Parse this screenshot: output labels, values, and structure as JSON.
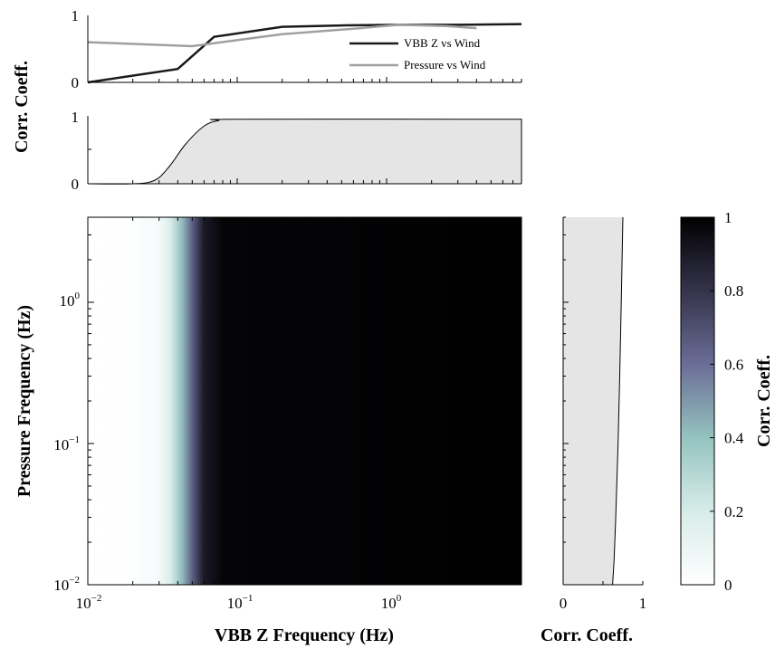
{
  "chart_data": [
    {
      "id": "top-coeff",
      "type": "line",
      "xscale": "log",
      "xlim": [
        0.01,
        8
      ],
      "ylim": [
        0,
        1
      ],
      "ylabel": "Corr. Coeff.",
      "yticks": [
        "0",
        "1"
      ],
      "legend_position": "top-right",
      "series": [
        {
          "name": "VBB Z vs Wind",
          "color": "#1a1a1a",
          "x": [
            0.01,
            0.04,
            0.07,
            0.2,
            0.5,
            1.2,
            3,
            8
          ],
          "y": [
            0.0,
            0.2,
            0.68,
            0.83,
            0.85,
            0.86,
            0.86,
            0.87
          ]
        },
        {
          "name": "Pressure vs Wind",
          "color": "#a0a0a0",
          "x": [
            0.01,
            0.05,
            0.2,
            0.6,
            1.2,
            2.5,
            4
          ],
          "y": [
            0.6,
            0.54,
            0.72,
            0.8,
            0.86,
            0.84,
            0.81
          ]
        }
      ]
    },
    {
      "id": "mid-coeff",
      "type": "area",
      "xscale": "log",
      "xlim": [
        0.01,
        8
      ],
      "ylim": [
        0,
        1
      ],
      "yticks": [
        "0",
        "1"
      ],
      "fill_color": "#e5e5e5",
      "line_color": "#000000",
      "x": [
        0.01,
        0.02,
        0.028,
        0.035,
        0.045,
        0.06,
        0.075,
        0.1,
        8
      ],
      "y": [
        0.0,
        0.0,
        0.05,
        0.25,
        0.58,
        0.85,
        0.93,
        0.95,
        0.95
      ]
    },
    {
      "id": "heatmap",
      "type": "heatmap",
      "xscale": "log",
      "yscale": "log",
      "xlim": [
        0.01,
        8
      ],
      "ylim": [
        0.01,
        4
      ],
      "xlabel": "VBB Z Frequency (Hz)",
      "ylabel": "Pressure Frequency (Hz)",
      "xticks": [
        {
          "base": "10",
          "exp": "−2"
        },
        {
          "base": "10",
          "exp": "−1"
        },
        {
          "base": "10",
          "exp": "0"
        }
      ],
      "yticks": [
        {
          "base": "10",
          "exp": "−2"
        },
        {
          "base": "10",
          "exp": "−1"
        },
        {
          "base": "10",
          "exp": "0"
        }
      ],
      "x_profile": {
        "x": [
          0.01,
          0.02,
          0.03,
          0.036,
          0.043,
          0.05,
          0.06,
          0.08,
          8
        ],
        "z": [
          0.0,
          0.01,
          0.05,
          0.2,
          0.42,
          0.65,
          0.9,
          0.98,
          1.0
        ]
      },
      "colormap": [
        [
          0.0,
          "#ffffff"
        ],
        [
          0.2,
          "#d7ece9"
        ],
        [
          0.4,
          "#94c3bf"
        ],
        [
          0.6,
          "#6b6d96"
        ],
        [
          0.8,
          "#34334b"
        ],
        [
          1.0,
          "#000000"
        ]
      ]
    },
    {
      "id": "side-coeff",
      "type": "area",
      "orientation": "horizontal",
      "xlim": [
        0,
        1
      ],
      "yscale": "log",
      "ylim": [
        0.01,
        4
      ],
      "xlabel": "Corr. Coeff.",
      "xticks": [
        "0",
        "1"
      ],
      "fill_color": "#e5e5e5",
      "line_color": "#000000",
      "y": [
        0.01,
        0.015,
        0.03,
        0.1,
        0.3,
        1,
        4
      ],
      "x": [
        0.62,
        0.64,
        0.66,
        0.69,
        0.71,
        0.73,
        0.75
      ]
    },
    {
      "id": "colorbar",
      "type": "colorbar",
      "label": "Corr. Coeff.",
      "ticks": [
        "0",
        "0.2",
        "0.4",
        "0.6",
        "0.8",
        "1"
      ]
    }
  ]
}
